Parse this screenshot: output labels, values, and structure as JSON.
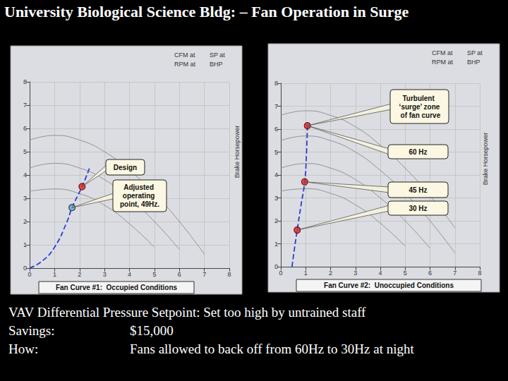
{
  "title": "University Biological Science Bldg: – Fan Operation in Surge",
  "chart_data": [
    {
      "type": "line",
      "caption": "Fan Curve #1:  Occupied Conditions",
      "header": [
        "CFM at",
        "SP at",
        "RPM at",
        "BHP"
      ],
      "y2_title": "Brake Horsepower",
      "xlim": [
        0,
        8
      ],
      "xticks": [
        0,
        1,
        2,
        3,
        4,
        5,
        6,
        7,
        8
      ],
      "ylim": [
        0,
        8
      ],
      "yticks": [
        0,
        1,
        2,
        3,
        4,
        5,
        6,
        7,
        8
      ],
      "grid": true,
      "series": [
        {
          "type": "line",
          "color": "#8a8a8a",
          "values": [
            [
              0,
              3.3
            ],
            [
              1,
              3.4
            ],
            [
              2,
              3.2
            ],
            [
              3,
              2.7
            ],
            [
              4,
              1.9
            ],
            [
              5,
              0.9
            ]
          ]
        },
        {
          "type": "line",
          "color": "#8a8a8a",
          "values": [
            [
              0,
              4.3
            ],
            [
              1,
              4.5
            ],
            [
              2,
              4.3
            ],
            [
              3,
              3.8
            ],
            [
              4,
              3.0
            ],
            [
              5,
              2.0
            ],
            [
              6,
              0.8
            ]
          ]
        },
        {
          "type": "line",
          "color": "#8a8a8a",
          "values": [
            [
              0,
              5.5
            ],
            [
              1,
              5.7
            ],
            [
              2,
              5.5
            ],
            [
              3,
              5.0
            ],
            [
              4,
              4.2
            ],
            [
              5,
              3.2
            ],
            [
              6,
              2.0
            ],
            [
              7,
              0.6
            ]
          ]
        },
        {
          "type": "line",
          "color": "#2a3fd0",
          "line_style": "dashed",
          "values": [
            [
              0,
              0
            ],
            [
              0.5,
              0.3
            ],
            [
              1,
              0.9
            ],
            [
              1.5,
              2.0
            ],
            [
              1.7,
              2.6
            ],
            [
              2.1,
              3.5
            ],
            [
              2.4,
              4.3
            ]
          ]
        },
        {
          "type": "scatter",
          "marker": "circle",
          "colors": [
            "#e02424",
            "#3fb6e0"
          ],
          "values": [
            [
              2.1,
              3.5
            ],
            [
              1.7,
              2.6
            ]
          ]
        }
      ],
      "annotations": [
        {
          "text": "Design",
          "x": 2.1,
          "y": 3.5
        },
        {
          "text": "Adjusted operating point, 49Hz.",
          "x": 1.7,
          "y": 2.6
        }
      ]
    },
    {
      "type": "line",
      "caption": "Fan Curve #2:  Unoccupied Conditions",
      "header": [
        "CFM at",
        "SP at",
        "RPM at",
        "BHP"
      ],
      "y2_title": "Brake Horsepower",
      "xlim": [
        0,
        8
      ],
      "xticks": [
        0,
        1,
        2,
        3,
        4,
        5,
        6,
        7,
        8
      ],
      "ylim": [
        0,
        8
      ],
      "yticks": [
        0,
        1,
        2,
        3,
        4,
        5,
        6,
        7,
        8
      ],
      "grid": true,
      "series": [
        {
          "type": "line",
          "color": "#8a8a8a",
          "values": [
            [
              0,
              3.3
            ],
            [
              1,
              3.4
            ],
            [
              2,
              3.2
            ],
            [
              3,
              2.7
            ],
            [
              4,
              1.9
            ],
            [
              5,
              0.9
            ]
          ]
        },
        {
          "type": "line",
          "color": "#8a8a8a",
          "values": [
            [
              0,
              4.3
            ],
            [
              1,
              4.5
            ],
            [
              2,
              4.3
            ],
            [
              3,
              3.8
            ],
            [
              4,
              3.0
            ],
            [
              5,
              2.0
            ],
            [
              6,
              0.8
            ]
          ]
        },
        {
          "type": "line",
          "color": "#8a8a8a",
          "values": [
            [
              0,
              5.5
            ],
            [
              1,
              5.7
            ],
            [
              2,
              5.5
            ],
            [
              3,
              5.0
            ],
            [
              4,
              4.2
            ],
            [
              5,
              3.2
            ],
            [
              6,
              2.0
            ],
            [
              7,
              0.6
            ]
          ]
        },
        {
          "type": "line",
          "color": "#8a8a8a",
          "values": [
            [
              0,
              6.6
            ],
            [
              1,
              6.8
            ],
            [
              2,
              6.6
            ],
            [
              3,
              6.1
            ],
            [
              4,
              5.3
            ],
            [
              5,
              4.3
            ],
            [
              6,
              3.1
            ],
            [
              7,
              1.7
            ]
          ]
        },
        {
          "type": "line",
          "color": "#2a3fd0",
          "line_style": "dashed",
          "values": [
            [
              0.45,
              0
            ],
            [
              0.55,
              0.8
            ],
            [
              0.66,
              1.6
            ],
            [
              0.8,
              2.6
            ],
            [
              0.96,
              3.7
            ],
            [
              1.03,
              4.9
            ],
            [
              1.07,
              6.15
            ]
          ]
        },
        {
          "type": "scatter",
          "marker": "circle",
          "colors": [
            "#e02424",
            "#e02424",
            "#e02424"
          ],
          "values": [
            [
              1.07,
              6.15
            ],
            [
              0.96,
              3.7
            ],
            [
              0.66,
              1.6
            ]
          ]
        }
      ],
      "annotations": [
        {
          "text": "Turbulent ‘surge’ zone of fan curve",
          "x": 1.07,
          "y": 6.15
        },
        {
          "text": "60 Hz",
          "x": 1.07,
          "y": 6.15
        },
        {
          "text": "45 Hz",
          "x": 0.96,
          "y": 3.7
        },
        {
          "text": "30 Hz",
          "x": 0.66,
          "y": 1.6
        }
      ]
    }
  ],
  "notes": [
    {
      "text": "VAV Differential Pressure Setpoint:  Set too high by untrained staff"
    },
    {
      "label": "Savings:",
      "text": "$15,000"
    },
    {
      "label": "How:",
      "text": "Fans allowed to back off from 60Hz to 30Hz at night"
    }
  ]
}
